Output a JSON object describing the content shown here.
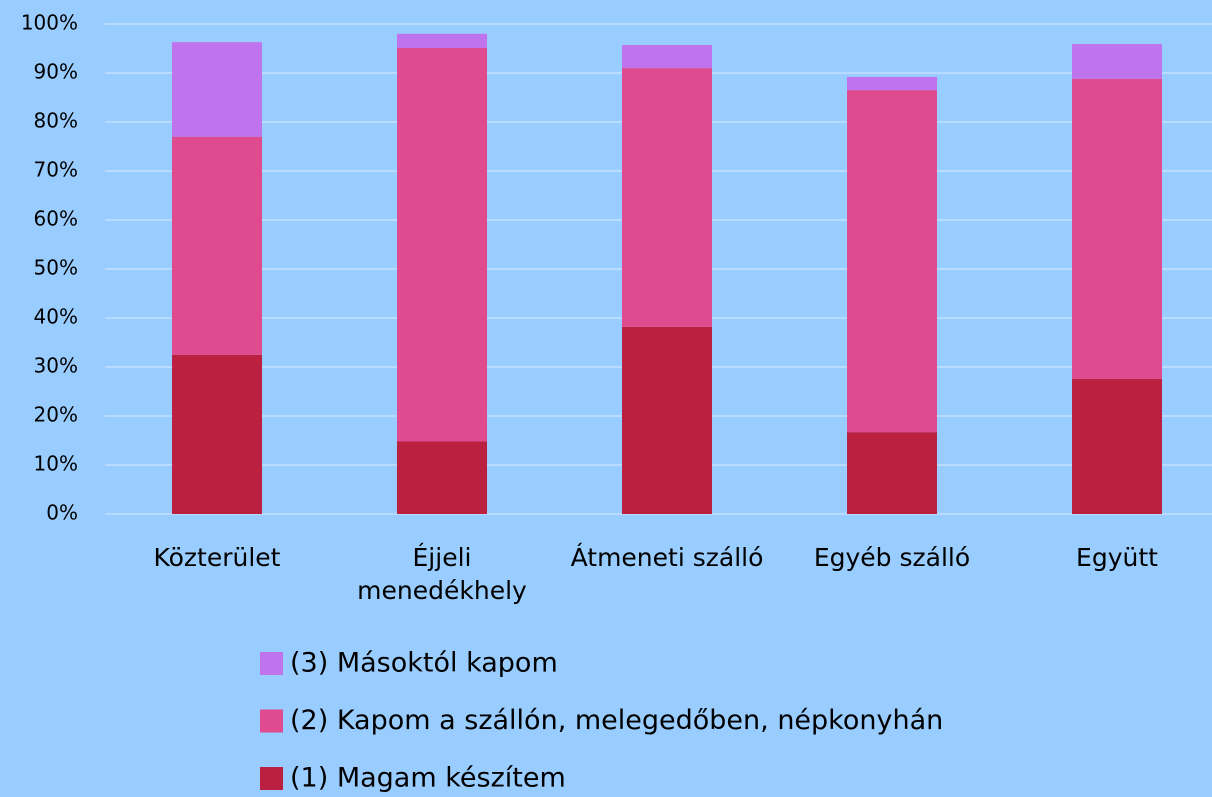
{
  "chart_data": {
    "type": "stacked_bar",
    "categories": [
      "Közterület",
      "Éjjeli menedékhely",
      "Átmeneti szálló",
      "Egyéb szálló",
      "Együtt"
    ],
    "series": [
      {
        "name": "(1) Magam készítem",
        "color": "#bb2040",
        "values": [
          32.5,
          14.8,
          38.2,
          16.7,
          27.6
        ]
      },
      {
        "name": "(2) Kapom a szállón, melegedőben, népkonyhán",
        "color": "#e04a8e",
        "values": [
          44.5,
          80.3,
          52.8,
          69.8,
          61.2
        ]
      },
      {
        "name": "(3) Másoktól kapom",
        "color": "#bf74ee",
        "values": [
          19.3,
          2.9,
          4.7,
          2.7,
          7.1
        ]
      }
    ],
    "ylim": [
      0,
      100
    ],
    "yticks": [
      {
        "value": 0,
        "label": "0%"
      },
      {
        "value": 10,
        "label": "10%"
      },
      {
        "value": 20,
        "label": "20%"
      },
      {
        "value": 30,
        "label": "30%"
      },
      {
        "value": 40,
        "label": "40%"
      },
      {
        "value": 50,
        "label": "50%"
      },
      {
        "value": 60,
        "label": "60%"
      },
      {
        "value": 70,
        "label": "70%"
      },
      {
        "value": 80,
        "label": "80%"
      },
      {
        "value": 90,
        "label": "90%"
      },
      {
        "value": 100,
        "label": "100%"
      }
    ],
    "grid": true,
    "legend": "bottom"
  }
}
